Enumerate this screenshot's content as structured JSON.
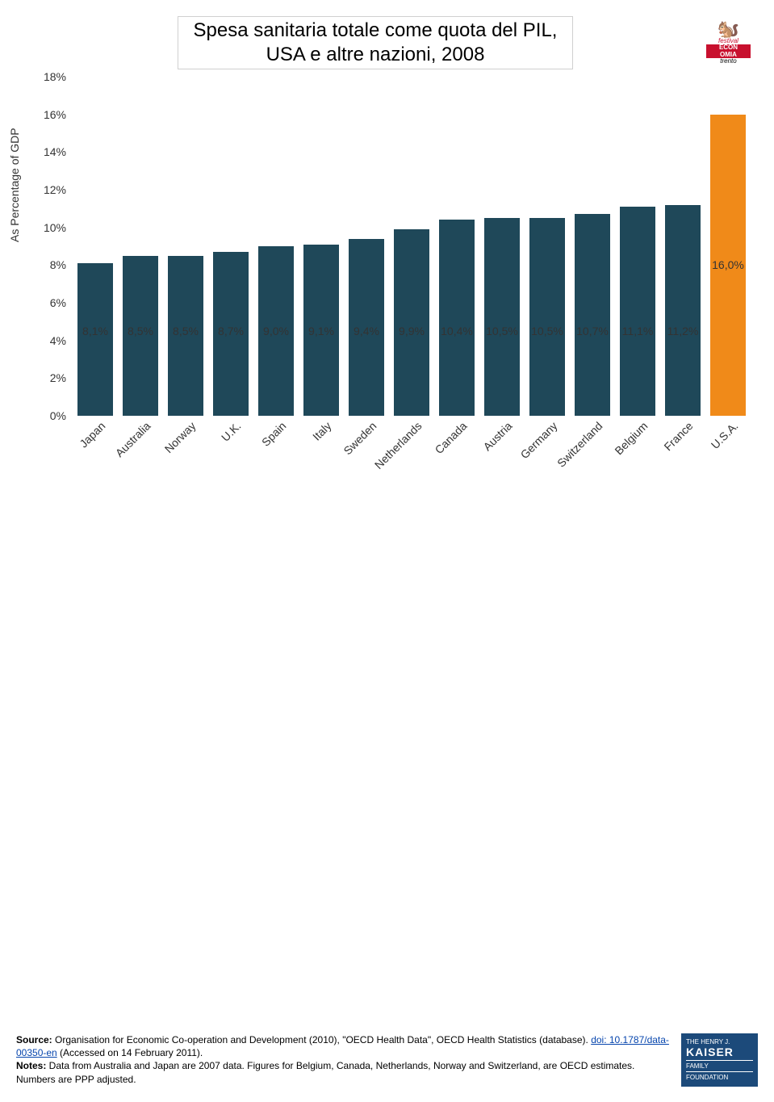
{
  "title_line1": "Spesa sanitaria totale come quota del PIL,",
  "title_line2": "USA e altre nazioni, 2008",
  "y_axis_label": "As Percentage of GDP",
  "chart": {
    "type": "bar",
    "ylim": [
      0,
      18
    ],
    "ytick_step": 2,
    "bar_color": "#1f4859",
    "highlight_color": "#f08a19",
    "background_color": "#ffffff",
    "bar_width_ratio": 0.78,
    "categories": [
      "Japan",
      "Australia",
      "Norway",
      "U.K.",
      "Spain",
      "Italy",
      "Sweden",
      "Netherlands",
      "Canada",
      "Austria",
      "Germany",
      "Switzerland",
      "Belgium",
      "France",
      "U.S.A."
    ],
    "values": [
      8.1,
      8.5,
      8.5,
      8.7,
      9.0,
      9.1,
      9.4,
      9.9,
      10.4,
      10.5,
      10.5,
      10.7,
      11.1,
      11.2,
      16.0
    ],
    "labels": [
      "8,1%",
      "8,5%",
      "8,5%",
      "8,7%",
      "9,0%",
      "9,1%",
      "9,4%",
      "9,9%",
      "10,4%",
      "10,5%",
      "10,5%",
      "10,7%",
      "11,1%",
      "11,2%",
      "16,0%"
    ],
    "highlight_index": 14,
    "label_fontsize": 14,
    "axis_fontsize": 14,
    "title_fontsize": 24
  },
  "yt": {
    "0": "0%",
    "1": "2%",
    "2": "4%",
    "3": "6%",
    "4": "8%",
    "5": "10%",
    "6": "12%",
    "7": "14%",
    "8": "16%",
    "9": "18%"
  },
  "cat": {
    "0": "Japan",
    "1": "Australia",
    "2": "Norway",
    "3": "U.K.",
    "4": "Spain",
    "5": "Italy",
    "6": "Sweden",
    "7": "Netherlands",
    "8": "Canada",
    "9": "Austria",
    "10": "Germany",
    "11": "Switzerland",
    "12": "Belgium",
    "13": "France",
    "14": "U.S.A."
  },
  "lbl": {
    "0": "8,1%",
    "1": "8,5%",
    "2": "8,5%",
    "3": "8,7%",
    "4": "9,0%",
    "5": "9,1%",
    "6": "9,4%",
    "7": "9,9%",
    "8": "10,4%",
    "9": "10,5%",
    "10": "10,5%",
    "11": "10,7%",
    "12": "11,1%",
    "13": "11,2%",
    "14": "16,0%"
  },
  "footnote": {
    "source_prefix": "Source:",
    "source_text": " Organisation for Economic Co-operation and Development (2010), \"OECD Health Data\", OECD Health Statistics (database). ",
    "link_text": "doi: 10.1787/data-00350-en",
    "accessed": " (Accessed on 14 February 2011).",
    "notes_prefix": "Notes:",
    "notes_text": " Data from Australia and Japan are 2007 data.  Figures for Belgium, Canada, Netherlands, Norway and Switzerland, are OECD estimates.  Numbers are PPP adjusted."
  },
  "logo_top": {
    "l1": "festival",
    "l2": "ECON",
    "l3": "OMIA",
    "l4": "trento"
  },
  "logo_bottom": {
    "l1": "THE HENRY J.",
    "l2": "KAISER",
    "l3": "FAMILY",
    "l4": "FOUNDATION"
  }
}
